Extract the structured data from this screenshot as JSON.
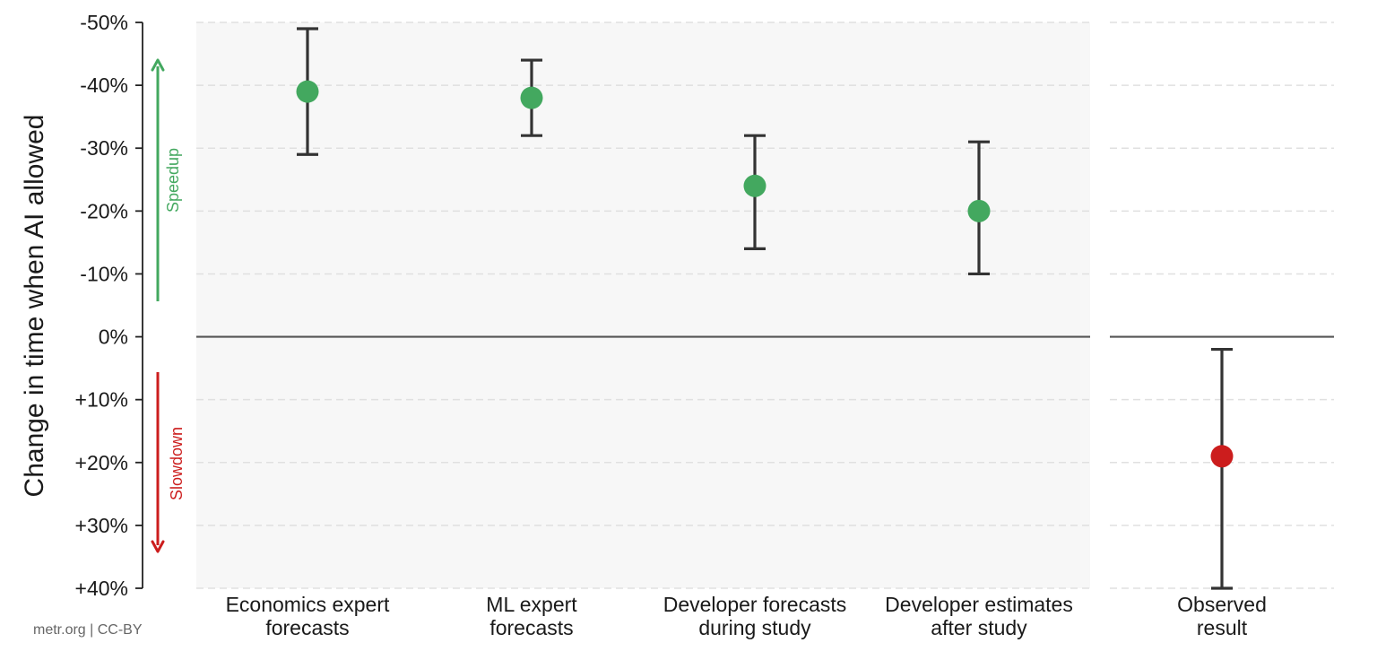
{
  "chart_data": {
    "type": "scatter",
    "ylabel": "Change in time when AI allowed",
    "ylim": [
      -50,
      40
    ],
    "y_inverted": true,
    "yticks": [
      {
        "value": -50,
        "label": "-50%"
      },
      {
        "value": -40,
        "label": "-40%"
      },
      {
        "value": -30,
        "label": "-30%"
      },
      {
        "value": -20,
        "label": "-20%"
      },
      {
        "value": -10,
        "label": "-10%"
      },
      {
        "value": 0,
        "label": "0%"
      },
      {
        "value": 10,
        "label": "+10%"
      },
      {
        "value": 20,
        "label": "+20%"
      },
      {
        "value": 30,
        "label": "+30%"
      },
      {
        "value": 40,
        "label": "+40%"
      }
    ],
    "grid": true,
    "panels": [
      {
        "background": "#f7f7f7",
        "points": [
          {
            "category": "Economics expert forecasts",
            "lines": [
              "Economics expert",
              "forecasts"
            ],
            "value": -39,
            "low": -49,
            "high": -29,
            "color": "#43a85f"
          },
          {
            "category": "ML expert forecasts",
            "lines": [
              "ML expert",
              "forecasts"
            ],
            "value": -38,
            "low": -44,
            "high": -32,
            "color": "#43a85f"
          },
          {
            "category": "Developer forecasts during study",
            "lines": [
              "Developer forecasts",
              "during study"
            ],
            "value": -24,
            "low": -32,
            "high": -14,
            "color": "#43a85f"
          },
          {
            "category": "Developer estimates after study",
            "lines": [
              "Developer estimates",
              "after study"
            ],
            "value": -20,
            "low": -31,
            "high": -10,
            "color": "#43a85f"
          }
        ]
      },
      {
        "background": "#ffffff",
        "points": [
          {
            "category": "Observed result",
            "lines": [
              "Observed",
              "result"
            ],
            "value": 19,
            "low": 2,
            "high": 40,
            "color": "#cc1d1d"
          }
        ]
      }
    ],
    "annotations": {
      "speedup": {
        "label": "Speedup",
        "color": "#43a85f"
      },
      "slowdown": {
        "label": "Slowdown",
        "color": "#cc1d1d"
      }
    }
  },
  "credit": "metr.org | CC-BY"
}
